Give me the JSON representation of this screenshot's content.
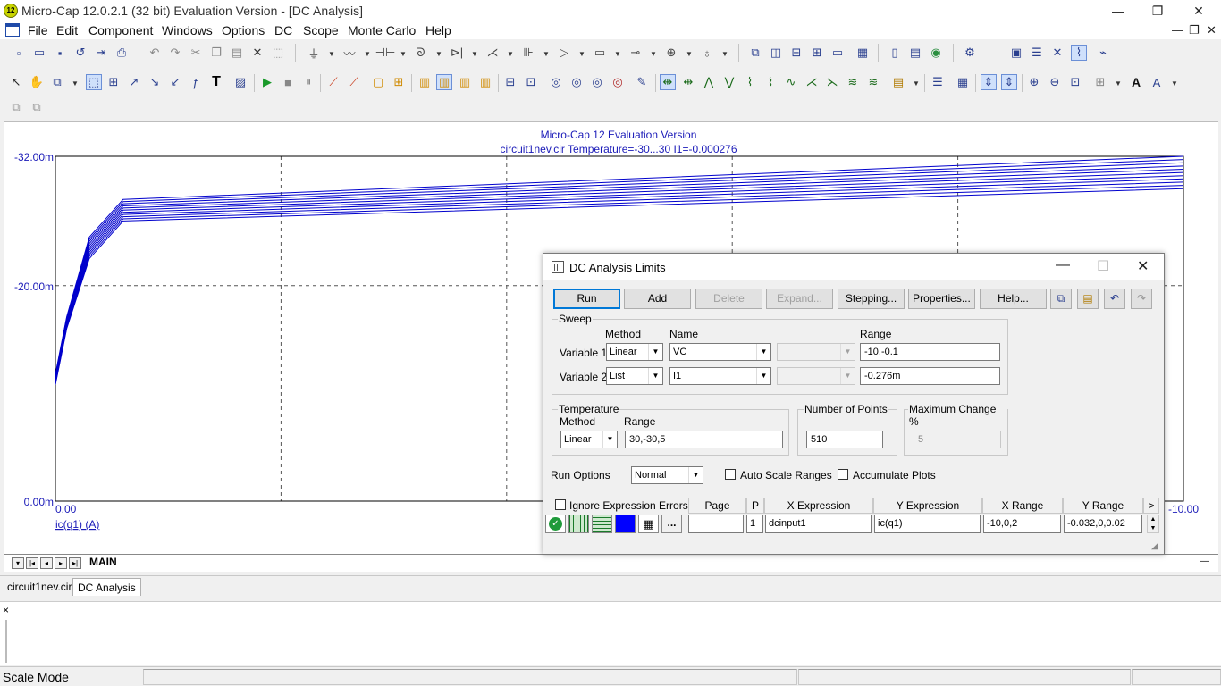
{
  "window": {
    "title": "Micro-Cap 12.0.2.1 (32 bit) Evaluation Version - [DC Analysis]",
    "app_icon_label": "12",
    "minimize": "—",
    "restore": "❐",
    "close": "✕"
  },
  "menu": {
    "items": [
      "File",
      "Edit",
      "Component",
      "Windows",
      "Options",
      "DC",
      "Scope",
      "Monte Carlo",
      "Help"
    ],
    "mdi_minimize": "—",
    "mdi_restore": "❐",
    "mdi_close": "✕"
  },
  "plot": {
    "title": "Micro-Cap 12 Evaluation Version",
    "subtitle": "circuit1nev.cir Temperature=-30...30 I1=-0.000276",
    "y_ticks": [
      "-32.00m",
      "-20.00m",
      "0.00m"
    ],
    "x_ticks": [
      "0.00",
      "-10.00"
    ],
    "y_expression_label": "ic(q1) (A)",
    "trace_color": "#0000cc",
    "text_color": "#1a1ab8",
    "page_tab": "MAIN"
  },
  "chart_data": {
    "type": "line",
    "title": "Micro-Cap 12 Evaluation Version",
    "subtitle": "circuit1nev.cir Temperature=-30...30 I1=-0.000276",
    "xlabel": "",
    "ylabel": "ic(q1) (A)",
    "xlim": [
      0,
      -10
    ],
    "ylim": [
      0,
      -0.032
    ],
    "grid": true,
    "x": [
      0,
      -0.1,
      -0.3,
      -0.6,
      -10
    ],
    "series": [
      {
        "values": [
          -0.0108,
          -0.016,
          -0.0225,
          -0.026,
          -0.029
        ]
      },
      {
        "values": [
          -0.0109,
          -0.0161,
          -0.0227,
          -0.0262,
          -0.0293
        ]
      },
      {
        "values": [
          -0.011,
          -0.0162,
          -0.0229,
          -0.0264,
          -0.0296
        ]
      },
      {
        "values": [
          -0.0111,
          -0.0163,
          -0.0231,
          -0.0266,
          -0.0299
        ]
      },
      {
        "values": [
          -0.0112,
          -0.0164,
          -0.0233,
          -0.0268,
          -0.0302
        ]
      },
      {
        "values": [
          -0.0113,
          -0.0166,
          -0.0235,
          -0.027,
          -0.0305
        ]
      },
      {
        "values": [
          -0.0114,
          -0.0167,
          -0.0237,
          -0.0272,
          -0.0308
        ]
      },
      {
        "values": [
          -0.0115,
          -0.0168,
          -0.0239,
          -0.0274,
          -0.0311
        ]
      },
      {
        "values": [
          -0.0116,
          -0.0169,
          -0.0241,
          -0.0276,
          -0.0314
        ]
      },
      {
        "values": [
          -0.0117,
          -0.017,
          -0.0243,
          -0.0278,
          -0.0317
        ]
      },
      {
        "values": [
          -0.0118,
          -0.0171,
          -0.0245,
          -0.028,
          -0.032
        ]
      }
    ]
  },
  "doc_tabs": [
    "circuit1nev.cir",
    "DC Analysis"
  ],
  "output": {
    "close": "×"
  },
  "status": {
    "text": "Scale Mode"
  },
  "dialog": {
    "title": "DC Analysis Limits",
    "minimize": "—",
    "maximize": "☐",
    "close": "✕",
    "buttons": {
      "run": "Run",
      "add": "Add",
      "delete": "Delete",
      "expand": "Expand...",
      "stepping": "Stepping...",
      "properties": "Properties...",
      "help": "Help..."
    },
    "sweep": {
      "label": "Sweep",
      "method_header": "Method",
      "name_header": "Name",
      "range_header": "Range",
      "var1": {
        "label": "Variable 1",
        "method": "Linear",
        "name": "VC",
        "range": "-10,-0.1"
      },
      "var2": {
        "label": "Variable 2",
        "method": "List",
        "name": "I1",
        "range": "-0.276m"
      }
    },
    "temperature": {
      "label": "Temperature",
      "method_label": "Method",
      "range_label": "Range",
      "method": "Linear",
      "range": "30,-30,5"
    },
    "points": {
      "label": "Number of Points",
      "value": "510"
    },
    "max_change": {
      "label": "Maximum Change %",
      "value": "5"
    },
    "run_options": {
      "label": "Run Options",
      "value": "Normal"
    },
    "auto_scale": {
      "label": "Auto Scale Ranges",
      "checked": false
    },
    "accumulate": {
      "label": "Accumulate Plots",
      "checked": false
    },
    "ignore_errors": {
      "label": "Ignore Expression Errors",
      "checked": false
    },
    "grid": {
      "headers": {
        "page": "Page",
        "p": "P",
        "x_expr": "X Expression",
        "y_expr": "Y Expression",
        "x_range": "X Range",
        "y_range": "Y Range",
        "more": ">"
      },
      "row": {
        "page": "",
        "p": "1",
        "x_expr": "dcinput1",
        "y_expr": "ic(q1)",
        "x_range": "-10,0,2",
        "y_range": "-0.032,0,0.02",
        "ellipsis": "..."
      },
      "color": "#0000ff"
    }
  }
}
